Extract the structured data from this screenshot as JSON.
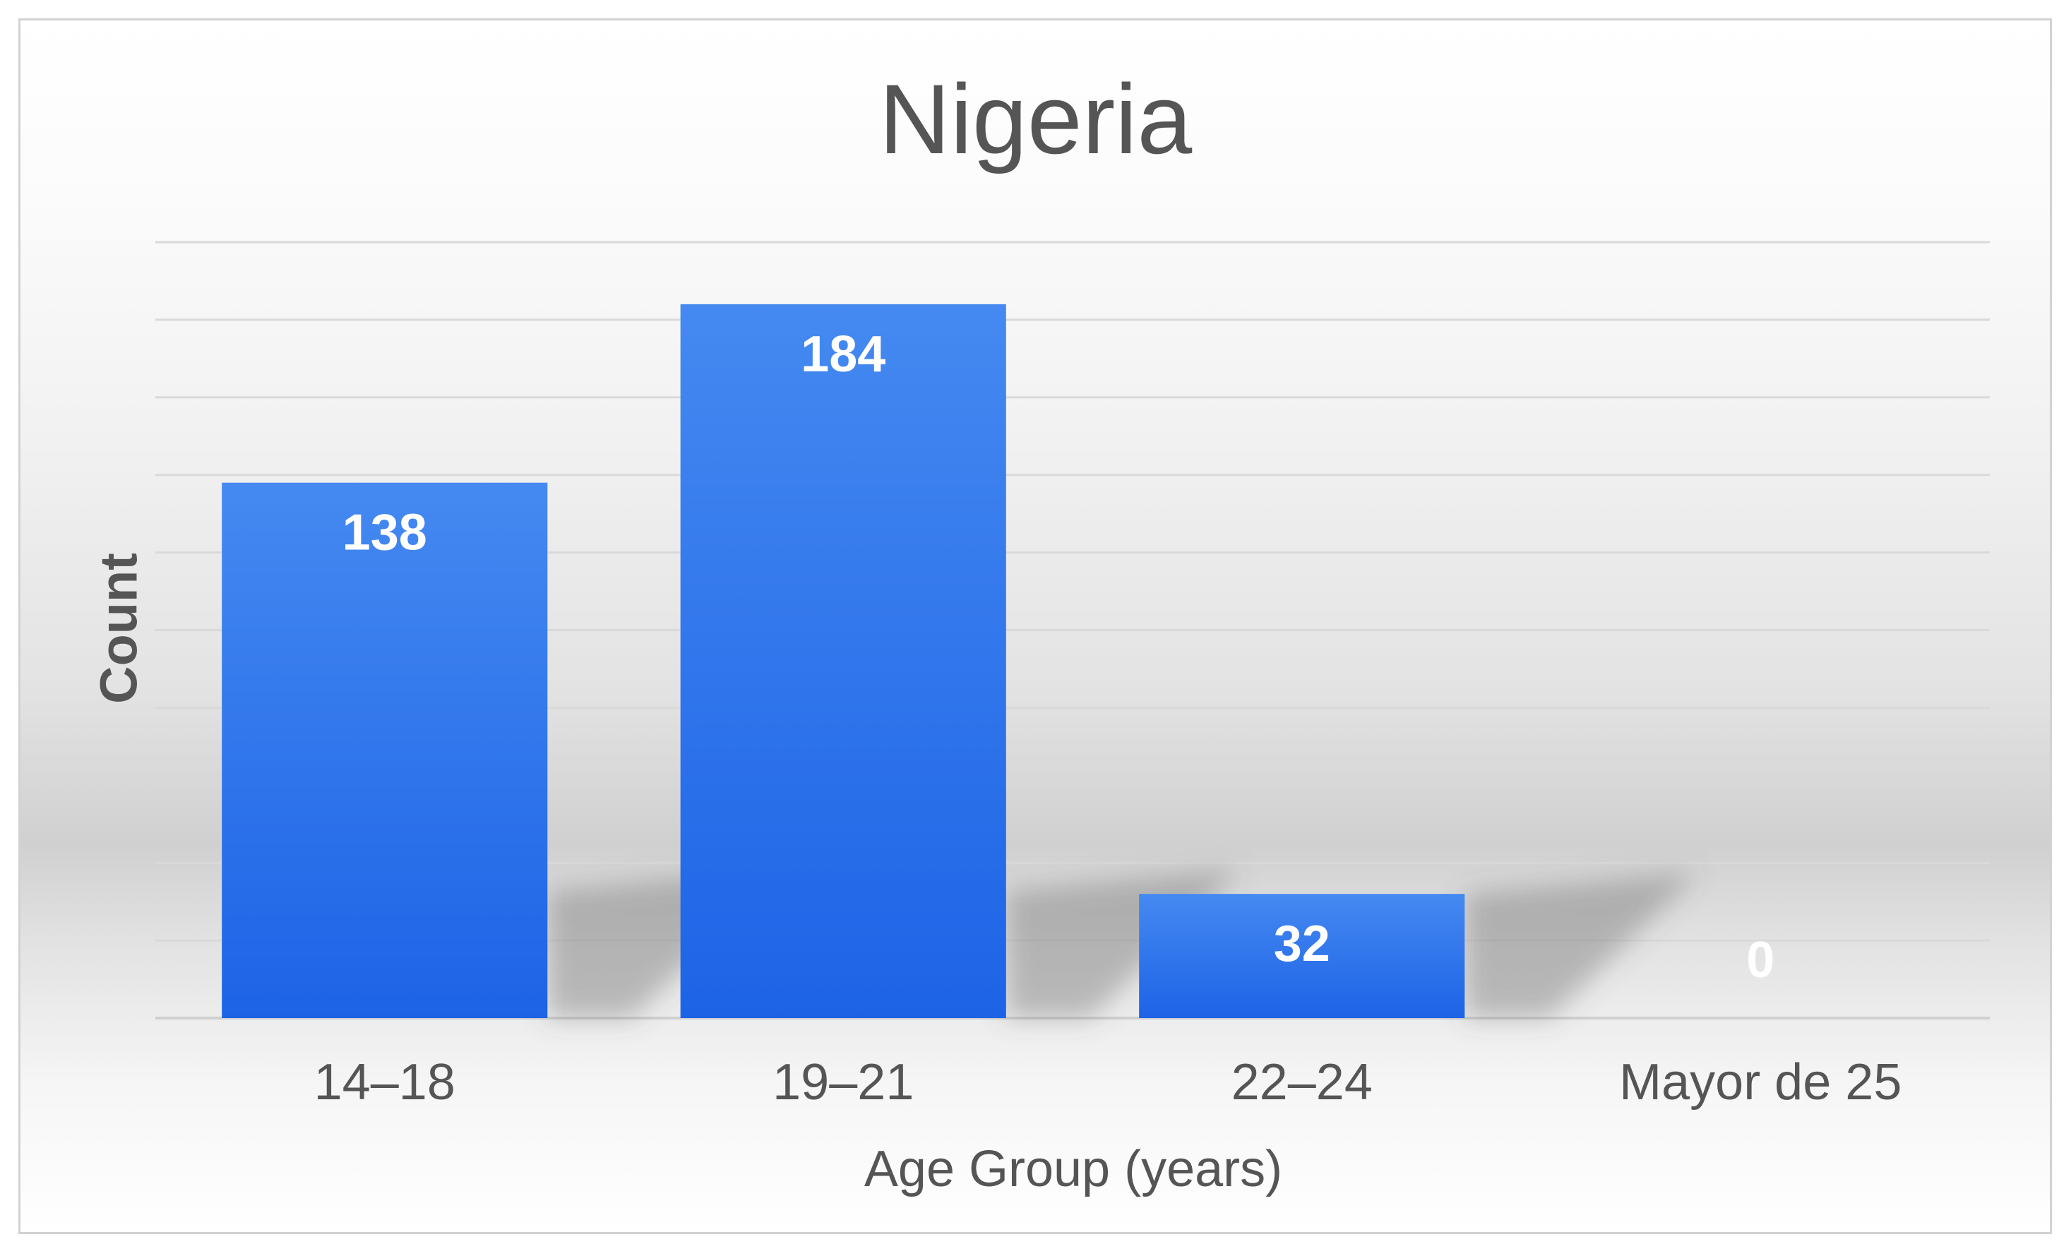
{
  "chart_data": {
    "type": "bar",
    "title": "Nigeria",
    "xlabel": "Age Group (years)",
    "ylabel": "Count",
    "categories": [
      "14–18",
      "19–21",
      "22–24",
      "Mayor de 25"
    ],
    "values": [
      138,
      184,
      32,
      0
    ],
    "data_labels": [
      "138",
      "184",
      "32",
      "0"
    ],
    "ylim": [
      0,
      200
    ],
    "grid": true,
    "legend": "none",
    "colors": {
      "bar": "#2f7be8",
      "bar_light": "#4589f1",
      "bar_dark": "#1d63e6",
      "grid": "#d9d9d9",
      "label": "#ffffff",
      "text": "#555555"
    }
  }
}
